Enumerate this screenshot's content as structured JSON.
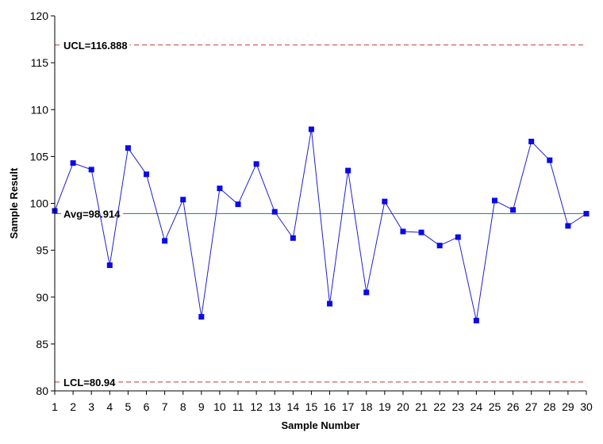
{
  "chart_data": {
    "type": "line",
    "xlabel": "Sample Number",
    "ylabel": "Sample Result",
    "xlim": [
      1,
      30
    ],
    "ylim": [
      80,
      120
    ],
    "y_ticks": [
      80,
      85,
      90,
      95,
      100,
      105,
      110,
      115,
      120
    ],
    "x": [
      1,
      2,
      3,
      4,
      5,
      6,
      7,
      8,
      9,
      10,
      11,
      12,
      13,
      14,
      15,
      16,
      17,
      18,
      19,
      20,
      21,
      22,
      23,
      24,
      25,
      26,
      27,
      28,
      29,
      30
    ],
    "series": [
      {
        "values": [
          99.2,
          104.3,
          103.6,
          93.4,
          105.9,
          103.1,
          96.0,
          100.4,
          87.9,
          101.6,
          99.9,
          104.2,
          99.1,
          96.3,
          107.9,
          89.3,
          103.5,
          90.5,
          100.2,
          97.0,
          96.9,
          95.5,
          96.4,
          87.5,
          100.3,
          99.3,
          106.6,
          104.6,
          97.6,
          98.9
        ],
        "color": "#1f1fd0",
        "marker_color": "#0a0ae6"
      }
    ],
    "reference_lines": [
      {
        "label": "UCL=116.888",
        "value": 116.888,
        "color": "#c0392b",
        "style": "dashed"
      },
      {
        "label": "Avg=98.914",
        "value": 98.914,
        "color": "#2e7d32",
        "style": "solid"
      },
      {
        "label": "LCL=80.94",
        "value": 80.94,
        "color": "#c0392b",
        "style": "dashed"
      }
    ],
    "grid": false,
    "legend": "none"
  }
}
